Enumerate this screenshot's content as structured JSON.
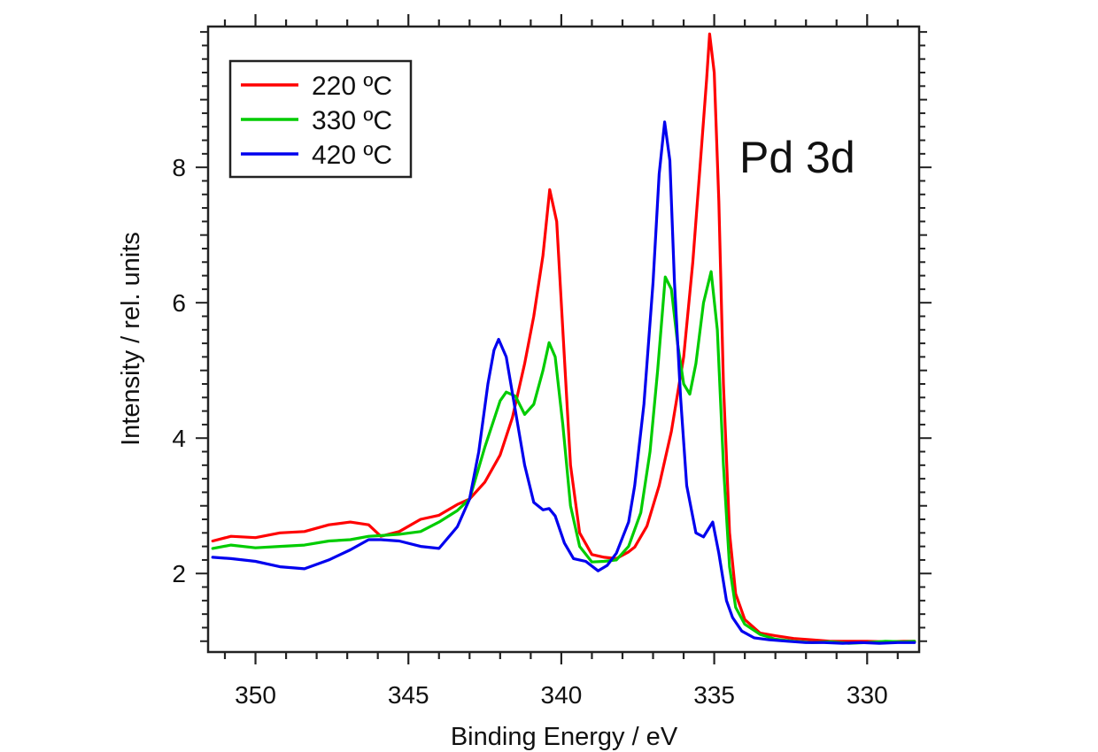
{
  "chart_data": {
    "type": "line",
    "title": "",
    "annotation": "Pd 3d",
    "xlabel": "Binding Energy / eV",
    "ylabel": "Intensity / rel. units",
    "xlim": [
      351.55,
      328.3
    ],
    "ylim": [
      0.84,
      10.08
    ],
    "x_reversed": true,
    "x_ticks": [
      350,
      345,
      340,
      335,
      330
    ],
    "x_tick_labels": [
      "350",
      "345",
      "340",
      "335",
      "330"
    ],
    "x_minor_step": 1,
    "y_ticks": [
      2,
      4,
      6,
      8
    ],
    "y_tick_labels": [
      "2",
      "4",
      "6",
      "8"
    ],
    "y_minor_step": 0.2,
    "grid": false,
    "legend_position": "top-left",
    "series": [
      {
        "name": "220 ºC",
        "color": "#ff0000",
        "x": [
          351.4,
          350.8,
          350.0,
          349.2,
          348.4,
          347.6,
          346.9,
          346.3,
          345.9,
          345.3,
          344.6,
          344.0,
          343.4,
          343.0,
          342.5,
          342.0,
          341.6,
          341.2,
          340.9,
          340.6,
          340.38,
          340.15,
          339.95,
          339.7,
          339.4,
          339.0,
          338.6,
          338.2,
          337.8,
          337.6,
          337.2,
          336.8,
          336.4,
          336.0,
          335.7,
          335.45,
          335.25,
          335.15,
          335.0,
          334.85,
          334.7,
          334.5,
          334.3,
          334.0,
          333.5,
          333.0,
          332.4,
          331.8,
          331.2,
          330.6,
          330.0,
          329.4,
          328.8,
          328.45
        ],
        "y": [
          2.48,
          2.55,
          2.53,
          2.6,
          2.62,
          2.72,
          2.76,
          2.72,
          2.55,
          2.62,
          2.8,
          2.86,
          3.02,
          3.1,
          3.35,
          3.75,
          4.3,
          5.1,
          5.8,
          6.7,
          7.67,
          7.2,
          5.6,
          3.6,
          2.6,
          2.28,
          2.24,
          2.22,
          2.32,
          2.39,
          2.7,
          3.3,
          4.1,
          5.2,
          6.6,
          8.1,
          9.3,
          9.97,
          9.4,
          7.5,
          4.8,
          2.6,
          1.7,
          1.32,
          1.12,
          1.08,
          1.04,
          1.02,
          1.0,
          1.0,
          1.0,
          0.99,
          1.0,
          1.0
        ]
      },
      {
        "name": "330 ºC",
        "color": "#00cc00",
        "x": [
          351.4,
          350.8,
          350.0,
          349.2,
          348.4,
          347.6,
          346.9,
          346.3,
          345.9,
          345.3,
          344.6,
          344.0,
          343.4,
          343.0,
          342.5,
          342.0,
          341.8,
          341.5,
          341.2,
          340.9,
          340.6,
          340.4,
          340.2,
          339.95,
          339.7,
          339.4,
          339.0,
          338.6,
          338.2,
          337.8,
          337.4,
          337.1,
          336.85,
          336.6,
          336.4,
          336.2,
          336.0,
          335.8,
          335.6,
          335.35,
          335.1,
          334.9,
          334.7,
          334.5,
          334.3,
          334.0,
          333.5,
          333.0,
          332.4,
          331.8,
          331.2,
          330.6,
          330.0,
          329.4,
          328.8,
          328.45
        ],
        "y": [
          2.37,
          2.42,
          2.38,
          2.4,
          2.42,
          2.48,
          2.5,
          2.55,
          2.56,
          2.58,
          2.62,
          2.76,
          2.93,
          3.1,
          3.87,
          4.55,
          4.68,
          4.62,
          4.35,
          4.5,
          5.0,
          5.41,
          5.2,
          4.2,
          3.0,
          2.4,
          2.17,
          2.18,
          2.2,
          2.4,
          2.9,
          3.8,
          5.0,
          6.38,
          6.2,
          5.4,
          4.8,
          4.65,
          5.1,
          6.0,
          6.46,
          5.6,
          3.6,
          2.1,
          1.5,
          1.25,
          1.1,
          1.03,
          1.0,
          0.98,
          0.99,
          0.97,
          0.98,
          1.0,
          0.99,
          1.0
        ]
      },
      {
        "name": "420 ºC",
        "color": "#0000ee",
        "x": [
          351.4,
          350.8,
          350.0,
          349.2,
          348.4,
          347.6,
          346.9,
          346.3,
          345.9,
          345.3,
          344.6,
          344.0,
          343.4,
          343.0,
          342.7,
          342.4,
          342.2,
          342.05,
          341.8,
          341.5,
          341.2,
          340.9,
          340.6,
          340.4,
          340.2,
          339.9,
          339.6,
          339.2,
          338.8,
          338.5,
          338.2,
          337.8,
          337.6,
          337.3,
          337.0,
          336.8,
          336.62,
          336.45,
          336.3,
          336.1,
          335.9,
          335.6,
          335.35,
          335.05,
          334.85,
          334.6,
          334.4,
          334.1,
          333.7,
          333.2,
          332.6,
          332.0,
          331.4,
          330.8,
          330.2,
          329.6,
          329.0,
          328.45
        ],
        "y": [
          2.24,
          2.22,
          2.18,
          2.1,
          2.07,
          2.2,
          2.35,
          2.5,
          2.5,
          2.48,
          2.4,
          2.37,
          2.69,
          3.1,
          3.8,
          4.8,
          5.3,
          5.46,
          5.2,
          4.4,
          3.6,
          3.05,
          2.94,
          2.96,
          2.85,
          2.45,
          2.22,
          2.18,
          2.04,
          2.12,
          2.3,
          2.76,
          3.3,
          4.5,
          6.3,
          7.9,
          8.67,
          8.1,
          6.3,
          4.6,
          3.3,
          2.6,
          2.54,
          2.76,
          2.3,
          1.6,
          1.35,
          1.15,
          1.05,
          1.02,
          1.0,
          0.98,
          0.98,
          0.97,
          0.98,
          0.97,
          0.98,
          0.98
        ]
      }
    ]
  }
}
